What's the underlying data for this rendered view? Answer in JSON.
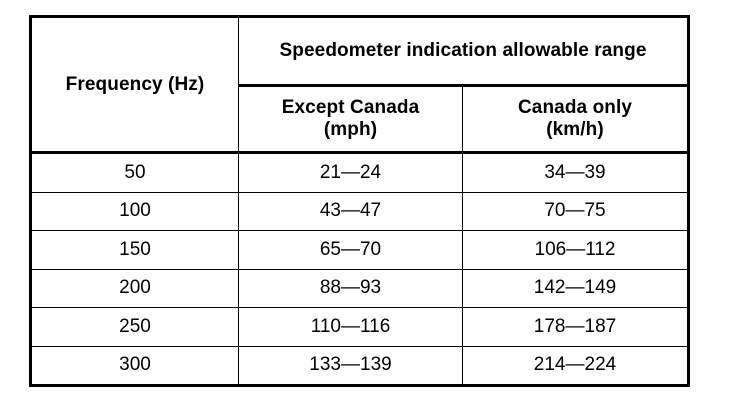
{
  "table": {
    "header_frequency": "Frequency (Hz)",
    "header_group": "Speedometer indication allowable range",
    "header_except_canada_line1": "Except Canada",
    "header_except_canada_line2": "(mph)",
    "header_canada_line1": "Canada only",
    "header_canada_line2": "(km/h)",
    "rows": [
      {
        "frequency": "50",
        "except_canada": "21—24",
        "canada": "34—39"
      },
      {
        "frequency": "100",
        "except_canada": "43—47",
        "canada": "70—75"
      },
      {
        "frequency": "150",
        "except_canada": "65—70",
        "canada": "106—112"
      },
      {
        "frequency": "200",
        "except_canada": "88—93",
        "canada": "142—149"
      },
      {
        "frequency": "250",
        "except_canada": "110—116",
        "canada": "178—187"
      },
      {
        "frequency": "300",
        "except_canada": "133—139",
        "canada": "214—224"
      }
    ]
  }
}
